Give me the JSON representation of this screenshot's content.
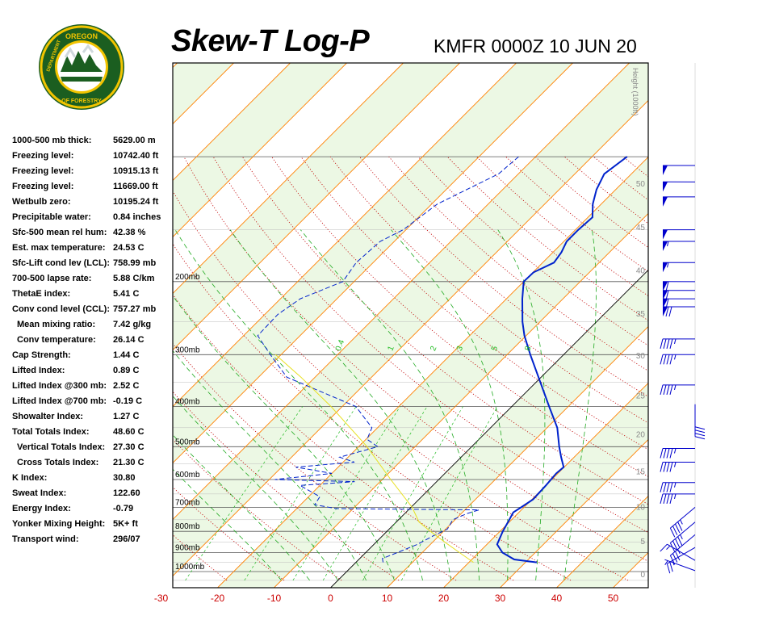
{
  "header": {
    "title": "Skew-T Log-P",
    "station_time": "KMFR 0000Z 10 JUN 20",
    "logo_text": "OREGON DEPARTMENT OF FORESTRY"
  },
  "indices": [
    {
      "label": "1000-500 mb thick:",
      "value": "5629.00 m"
    },
    {
      "label": "Freezing level:",
      "value": "10742.40 ft"
    },
    {
      "label": "Freezing level:",
      "value": "10915.13 ft"
    },
    {
      "label": "Freezing level:",
      "value": "11669.00 ft"
    },
    {
      "label": "Wetbulb zero:",
      "value": "10195.24 ft"
    },
    {
      "label": "Precipitable water:",
      "value": "0.84 inches"
    },
    {
      "label": "Sfc-500 mean rel hum:",
      "value": "42.38 %"
    },
    {
      "label": "Est. max temperature:",
      "value": "24.53 C"
    },
    {
      "label": "Sfc-Lift cond lev (LCL):",
      "value": "758.99 mb"
    },
    {
      "label": "700-500 lapse rate:",
      "value": "5.88 C/km"
    },
    {
      "label": "ThetaE index:",
      "value": "5.41 C"
    },
    {
      "label": "Conv cond level (CCL):",
      "value": "757.27 mb"
    },
    {
      "label": "Mean mixing ratio:",
      "value": "7.42 g/kg",
      "indent": true
    },
    {
      "label": "Conv temperature:",
      "value": "26.14 C",
      "indent": true
    },
    {
      "label": "Cap Strength:",
      "value": "1.44 C"
    },
    {
      "label": "Lifted Index:",
      "value": "0.89 C"
    },
    {
      "label": "Lifted Index @300 mb:",
      "value": "2.52 C"
    },
    {
      "label": "Lifted Index @700 mb:",
      "value": "-0.19 C"
    },
    {
      "label": "Showalter Index:",
      "value": "1.27 C"
    },
    {
      "label": "Total Totals Index:",
      "value": "48.60 C"
    },
    {
      "label": "Vertical Totals Index:",
      "value": "27.30 C",
      "indent": true
    },
    {
      "label": "Cross Totals Index:",
      "value": "21.30 C",
      "indent": true
    },
    {
      "label": "K Index:",
      "value": "30.80"
    },
    {
      "label": "Sweat Index:",
      "value": "122.60"
    },
    {
      "label": "Energy Index:",
      "value": "-0.79"
    },
    {
      "label": "Yonker Mixing Height:",
      "value": "5K+ ft"
    },
    {
      "label": "Transport wind:",
      "value": "296/07"
    }
  ],
  "chart_data": {
    "type": "line",
    "chart_kind": "skew-t log-p",
    "title": "Skew-T Log-P",
    "subtitle": "KMFR 0000Z 10 JUN 20",
    "x_axis_unit": "C",
    "xlim": [
      -30,
      53
    ],
    "x_ticks": [
      -30,
      -20,
      -10,
      0,
      10,
      20,
      30,
      40,
      50
    ],
    "pressure_levels": [
      {
        "p": 200,
        "label": "200mb"
      },
      {
        "p": 300,
        "label": "300mb"
      },
      {
        "p": 400,
        "label": "400mb"
      },
      {
        "p": 500,
        "label": "500mb"
      },
      {
        "p": 600,
        "label": "600mb"
      },
      {
        "p": 700,
        "label": "700mb"
      },
      {
        "p": 800,
        "label": "800mb"
      },
      {
        "p": 900,
        "label": "900mb"
      },
      {
        "p": 1000,
        "label": "1000mb"
      }
    ],
    "height_axis": {
      "label": "Height (1000ft)",
      "ticks": [
        0,
        5,
        10,
        15,
        20,
        25,
        30,
        35,
        40,
        45,
        50
      ]
    },
    "mixing_ratio_labels": [
      "0.4",
      "1",
      "2",
      "3",
      "5",
      "8"
    ],
    "series": [
      {
        "role": "temperature",
        "color": "#0022cc",
        "points": [
          {
            "p": 950,
            "t": 32.0
          },
          {
            "p": 935,
            "t": 27.5
          },
          {
            "p": 900,
            "t": 24.2
          },
          {
            "p": 860,
            "t": 21.8
          },
          {
            "p": 800,
            "t": 20.5
          },
          {
            "p": 750,
            "t": 19.6
          },
          {
            "p": 720,
            "t": 19.0
          },
          {
            "p": 700,
            "t": 19.5
          },
          {
            "p": 670,
            "t": 20.2
          },
          {
            "p": 620,
            "t": 20.0
          },
          {
            "p": 580,
            "t": 19.7
          },
          {
            "p": 560,
            "t": 19.9
          },
          {
            "p": 530,
            "t": 17.7
          },
          {
            "p": 500,
            "t": 15.5
          },
          {
            "p": 450,
            "t": 11.8
          },
          {
            "p": 400,
            "t": 6.6
          },
          {
            "p": 350,
            "t": 0.8
          },
          {
            "p": 300,
            "t": -5.9
          },
          {
            "p": 270,
            "t": -10.3
          },
          {
            "p": 250,
            "t": -13.1
          },
          {
            "p": 220,
            "t": -17.2
          },
          {
            "p": 200,
            "t": -20.0
          },
          {
            "p": 190,
            "t": -19.9
          },
          {
            "p": 180,
            "t": -18.0
          },
          {
            "p": 170,
            "t": -18.5
          },
          {
            "p": 160,
            "t": -19.5
          },
          {
            "p": 150,
            "t": -19.5
          },
          {
            "p": 140,
            "t": -19.2
          },
          {
            "p": 130,
            "t": -21.5
          },
          {
            "p": 120,
            "t": -23.4
          },
          {
            "p": 110,
            "t": -24.8
          },
          {
            "p": 100,
            "t": -23.8
          }
        ]
      },
      {
        "role": "dewpoint",
        "color": "#0022cc",
        "points": [
          {
            "p": 950,
            "t": 4.8
          },
          {
            "p": 930,
            "t": 4.0
          },
          {
            "p": 900,
            "t": 5.6
          },
          {
            "p": 860,
            "t": 7.7
          },
          {
            "p": 820,
            "t": 9.0
          },
          {
            "p": 790,
            "t": 10.3
          },
          {
            "p": 750,
            "t": 9.6
          },
          {
            "p": 725,
            "t": 11.0
          },
          {
            "p": 710,
            "t": 12.5
          },
          {
            "p": 705,
            "t": -13.0
          },
          {
            "p": 690,
            "t": -17.5
          },
          {
            "p": 660,
            "t": -18.0
          },
          {
            "p": 620,
            "t": -23.5
          },
          {
            "p": 607,
            "t": -14.5
          },
          {
            "p": 600,
            "t": -29.0
          },
          {
            "p": 580,
            "t": -20.0
          },
          {
            "p": 560,
            "t": -27.5
          },
          {
            "p": 545,
            "t": -18.0
          },
          {
            "p": 530,
            "t": -21.5
          },
          {
            "p": 500,
            "t": -16.6
          },
          {
            "p": 480,
            "t": -19.8
          },
          {
            "p": 450,
            "t": -21.0
          },
          {
            "p": 400,
            "t": -27.6
          },
          {
            "p": 340,
            "t": -45.0
          },
          {
            "p": 300,
            "t": -51.9
          },
          {
            "p": 270,
            "t": -57.5
          },
          {
            "p": 240,
            "t": -57.7
          },
          {
            "p": 220,
            "t": -56.5
          },
          {
            "p": 200,
            "t": -52.0
          },
          {
            "p": 180,
            "t": -53.0
          },
          {
            "p": 160,
            "t": -52.5
          },
          {
            "p": 150,
            "t": -50.5
          },
          {
            "p": 130,
            "t": -49.0
          },
          {
            "p": 110,
            "t": -43.5
          },
          {
            "p": 100,
            "t": -43.0
          }
        ]
      },
      {
        "role": "parcel",
        "color": "#e8e020",
        "points": [
          {
            "p": 950,
            "t": 20.8
          },
          {
            "p": 900,
            "t": 16.6
          },
          {
            "p": 850,
            "t": 12.2
          },
          {
            "p": 800,
            "t": 7.7
          },
          {
            "p": 759,
            "t": 4.0
          },
          {
            "p": 700,
            "t": 0.2
          },
          {
            "p": 600,
            "t": -8.5
          },
          {
            "p": 500,
            "t": -18.5
          },
          {
            "p": 400,
            "t": -32.0
          },
          {
            "p": 340,
            "t": -42.5
          },
          {
            "p": 300,
            "t": -51.0
          }
        ]
      }
    ],
    "wind_barbs": [
      {
        "p": 995,
        "speed_kt": 5,
        "dir": 290
      },
      {
        "p": 940,
        "speed_kt": 15,
        "dir": 300
      },
      {
        "p": 875,
        "speed_kt": 25,
        "dir": 240
      },
      {
        "p": 815,
        "speed_kt": 35,
        "dir": 230
      },
      {
        "p": 760,
        "speed_kt": 45,
        "dir": 230
      },
      {
        "p": 700,
        "speed_kt": 45,
        "dir": 230
      },
      {
        "p": 650,
        "speed_kt": 45,
        "dir": 270
      },
      {
        "p": 610,
        "speed_kt": 45,
        "dir": 270
      },
      {
        "p": 545,
        "speed_kt": 45,
        "dir": 270
      },
      {
        "p": 505,
        "speed_kt": 45,
        "dir": 270
      },
      {
        "p": 395,
        "speed_kt": 40,
        "dir": 180
      },
      {
        "p": 355,
        "speed_kt": 45,
        "dir": 270
      },
      {
        "p": 300,
        "speed_kt": 45,
        "dir": 270
      },
      {
        "p": 275,
        "speed_kt": 45,
        "dir": 270
      },
      {
        "p": 230,
        "speed_kt": 70,
        "dir": 270
      },
      {
        "p": 220,
        "speed_kt": 60,
        "dir": 270
      },
      {
        "p": 210,
        "speed_kt": 60,
        "dir": 270
      },
      {
        "p": 200,
        "speed_kt": 60,
        "dir": 270
      },
      {
        "p": 180,
        "speed_kt": 55,
        "dir": 270
      },
      {
        "p": 160,
        "speed_kt": 55,
        "dir": 270
      },
      {
        "p": 150,
        "speed_kt": 50,
        "dir": 270
      },
      {
        "p": 125,
        "speed_kt": 50,
        "dir": 270
      },
      {
        "p": 115,
        "speed_kt": 50,
        "dir": 270
      },
      {
        "p": 105,
        "speed_kt": 50,
        "dir": 270
      }
    ],
    "colors": {
      "isotherm": "#ff8000",
      "isobar": "#555555",
      "dry_adiabat": "#c00000",
      "moist_adiabat": "#22aa22",
      "mixing_ratio": "#22bb22",
      "zero_isotherm": "#000000",
      "panel_bg": "#ecf8e4",
      "axis_labels": "#cc0000",
      "wind_barb": "#0000cc"
    }
  }
}
